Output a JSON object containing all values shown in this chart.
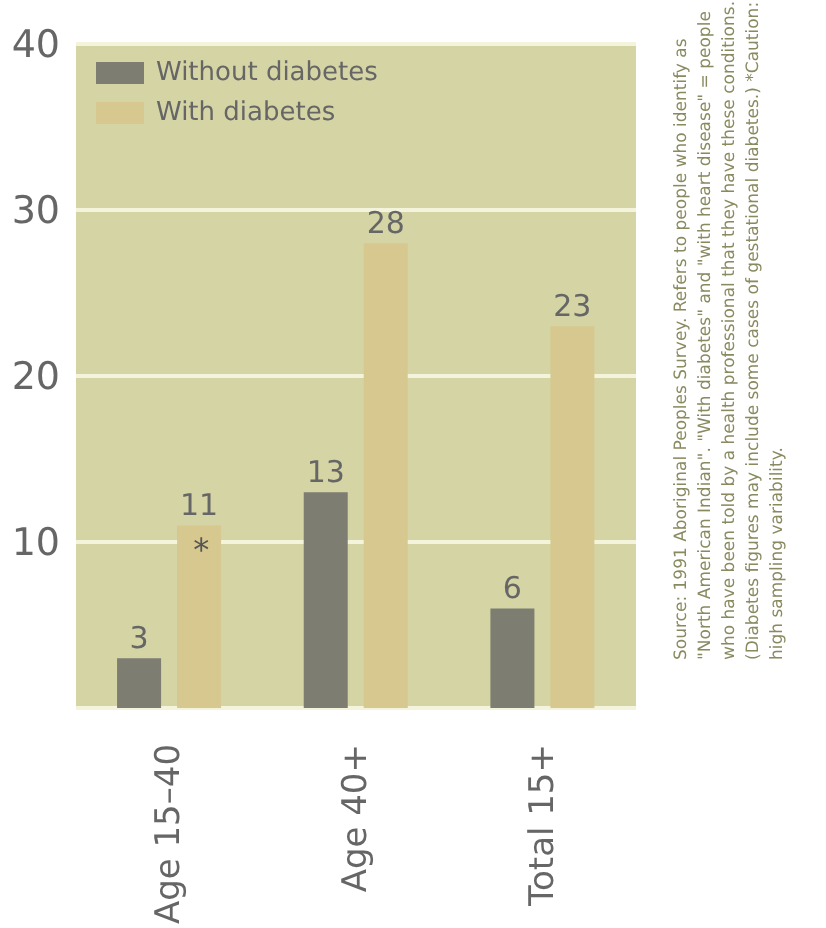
{
  "chart_data": {
    "type": "bar",
    "categories": [
      "Age 15–40",
      "Age 40+",
      "Total 15+"
    ],
    "series": [
      {
        "name": "Without diabetes",
        "color": "#7d7d72",
        "values": [
          3,
          13,
          6
        ]
      },
      {
        "name": "With diabetes",
        "color": "#d6c88e",
        "values": [
          11,
          28,
          23
        ]
      }
    ],
    "ylim": [
      0,
      40
    ],
    "yticks": [
      10,
      20,
      30,
      40
    ],
    "grid": "y",
    "legend": "top left",
    "data_labels": true,
    "annotations": [
      {
        "text": "*",
        "x": "Age 15–40",
        "y": 9.5
      },
      "Source: 1991 Aboriginal Peoples Survey. Refers to people who identify as \"North American Indian\". \"With diabetes\" and \"with heart disease\" = people who have been told by a health professional that they have these conditions. (Diabetes figures may include some cases of gestational diabetes.) *Caution: high sampling variability."
    ]
  }
}
